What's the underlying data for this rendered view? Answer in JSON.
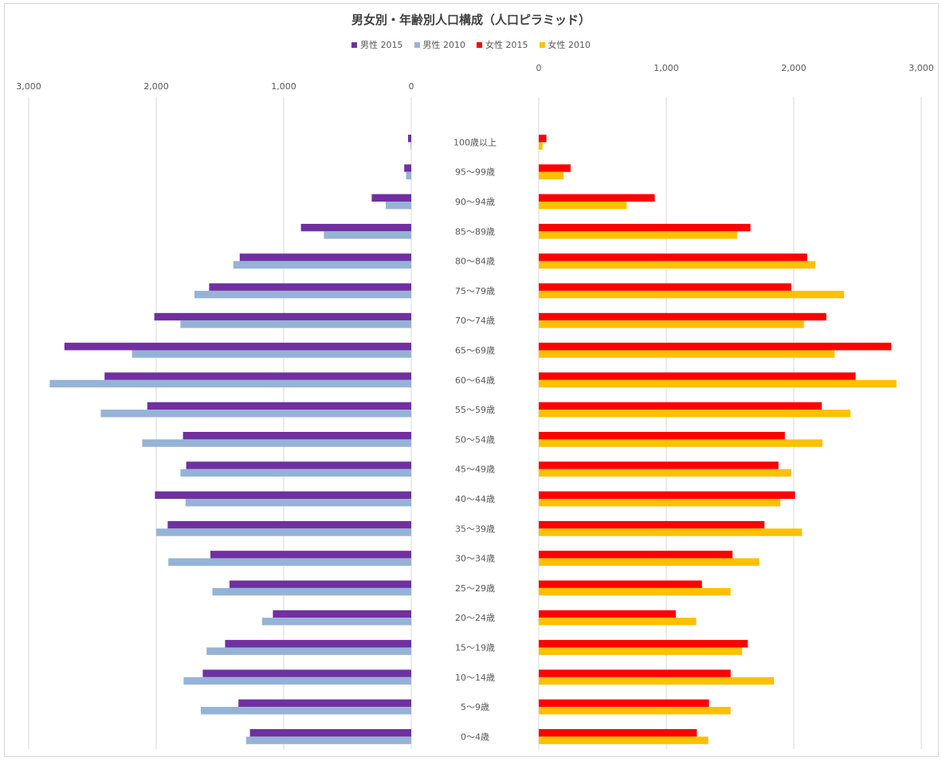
{
  "chart_data": {
    "type": "bar",
    "orientation": "horizontal",
    "layout": "population-pyramid",
    "title": "男女別・年齢別人口構成（人口ピラミッド）",
    "categories": [
      "100歳以上",
      "95〜99歳",
      "90〜94歳",
      "85〜89歳",
      "80〜84歳",
      "75〜79歳",
      "70〜74歳",
      "65〜69歳",
      "60〜64歳",
      "55〜59歳",
      "50〜54歳",
      "45〜49歳",
      "40〜44歳",
      "35〜39歳",
      "30〜34歳",
      "25〜29歳",
      "20〜24歳",
      "15〜19歳",
      "10〜14歳",
      "5〜9歳",
      "0〜4歳"
    ],
    "series": [
      {
        "name": "男性 2015",
        "side": "left",
        "color": "#7030a0",
        "values": [
          25,
          55,
          310,
          865,
          1345,
          1585,
          2015,
          2720,
          2405,
          2070,
          1790,
          1765,
          2010,
          1910,
          1575,
          1425,
          1085,
          1460,
          1635,
          1355,
          1265
        ]
      },
      {
        "name": "男性 2010",
        "side": "left",
        "color": "#95b3d7",
        "values": [
          5,
          40,
          200,
          685,
          1395,
          1700,
          1810,
          2190,
          2835,
          2435,
          2110,
          1810,
          1770,
          2000,
          1905,
          1560,
          1170,
          1605,
          1785,
          1650,
          1295
        ]
      },
      {
        "name": "女性 2015",
        "side": "right",
        "color": "#ff0000",
        "values": [
          60,
          250,
          910,
          1660,
          2105,
          1980,
          2255,
          2765,
          2485,
          2220,
          1930,
          1880,
          2010,
          1770,
          1520,
          1280,
          1075,
          1640,
          1505,
          1335,
          1240
        ]
      },
      {
        "name": "女性 2010",
        "side": "right",
        "color": "#ffc000",
        "values": [
          30,
          195,
          690,
          1555,
          2170,
          2395,
          2080,
          2320,
          2805,
          2445,
          2225,
          1980,
          1895,
          2065,
          1730,
          1505,
          1235,
          1595,
          1845,
          1505,
          1330
        ]
      }
    ],
    "left_axis": {
      "min": 0,
      "max": 3000,
      "ticks": [
        3000,
        2000,
        1000,
        0
      ],
      "tick_labels": [
        "3,000",
        "2,000",
        "1,000",
        "0"
      ]
    },
    "right_axis": {
      "min": 0,
      "max": 3000,
      "ticks": [
        0,
        1000,
        2000,
        3000
      ],
      "tick_labels": [
        "0",
        "1,000",
        "2,000",
        "3,000"
      ]
    },
    "grid": true,
    "legend_position": "top"
  }
}
